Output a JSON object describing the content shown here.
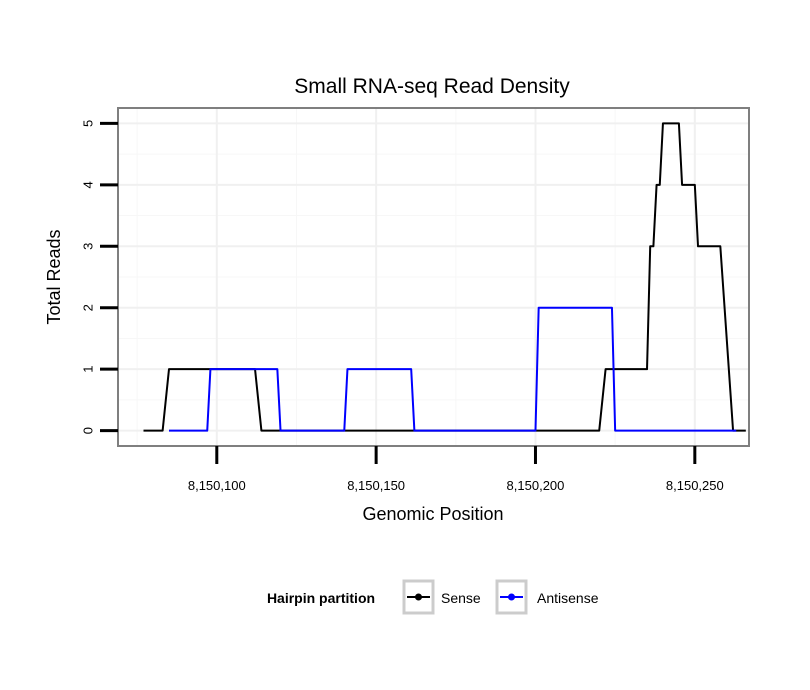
{
  "chart_data": {
    "type": "line",
    "title": "Small RNA-seq Read Density",
    "xlabel": "Genomic Position",
    "ylabel": "Total Reads",
    "xlim": [
      8150069,
      8150267
    ],
    "ylim": [
      -0.25,
      5.25
    ],
    "x_ticks": [
      8150100,
      8150150,
      8150200,
      8150250
    ],
    "x_tick_labels": [
      "8,150,100",
      "8,150,150",
      "8,150,200",
      "8,150,250"
    ],
    "y_ticks": [
      0,
      1,
      2,
      3,
      4,
      5
    ],
    "y_tick_labels": [
      "0",
      "1",
      "2",
      "3",
      "4",
      "5"
    ],
    "grid": true,
    "legend_title": "Hairpin partition",
    "legend_position": "bottom",
    "series": [
      {
        "name": "Sense",
        "color": "#000000",
        "x": [
          8150077,
          8150083,
          8150085,
          8150112,
          8150114,
          8150130,
          8150150,
          8150170,
          8150190,
          8150210,
          8150220,
          8150222,
          8150235,
          8150236,
          8150237,
          8150238,
          8150239,
          8150240,
          8150245,
          8150246,
          8150250,
          8150251,
          8150258,
          8150262,
          8150264,
          8150266
        ],
        "values": [
          0,
          0,
          1,
          1,
          0,
          0,
          0,
          0,
          0,
          0,
          0,
          1,
          1,
          3,
          3,
          4,
          4,
          5,
          5,
          4,
          4,
          3,
          3,
          0,
          0,
          0
        ]
      },
      {
        "name": "Antisense",
        "color": "#0000FF",
        "x": [
          8150085,
          8150097,
          8150098,
          8150119,
          8150120,
          8150140,
          8150141,
          8150161,
          8150162,
          8150200,
          8150201,
          8150224,
          8150225,
          8150263
        ],
        "values": [
          0,
          0,
          1,
          1,
          0,
          0,
          1,
          1,
          0,
          0,
          2,
          2,
          0,
          0
        ]
      }
    ]
  }
}
